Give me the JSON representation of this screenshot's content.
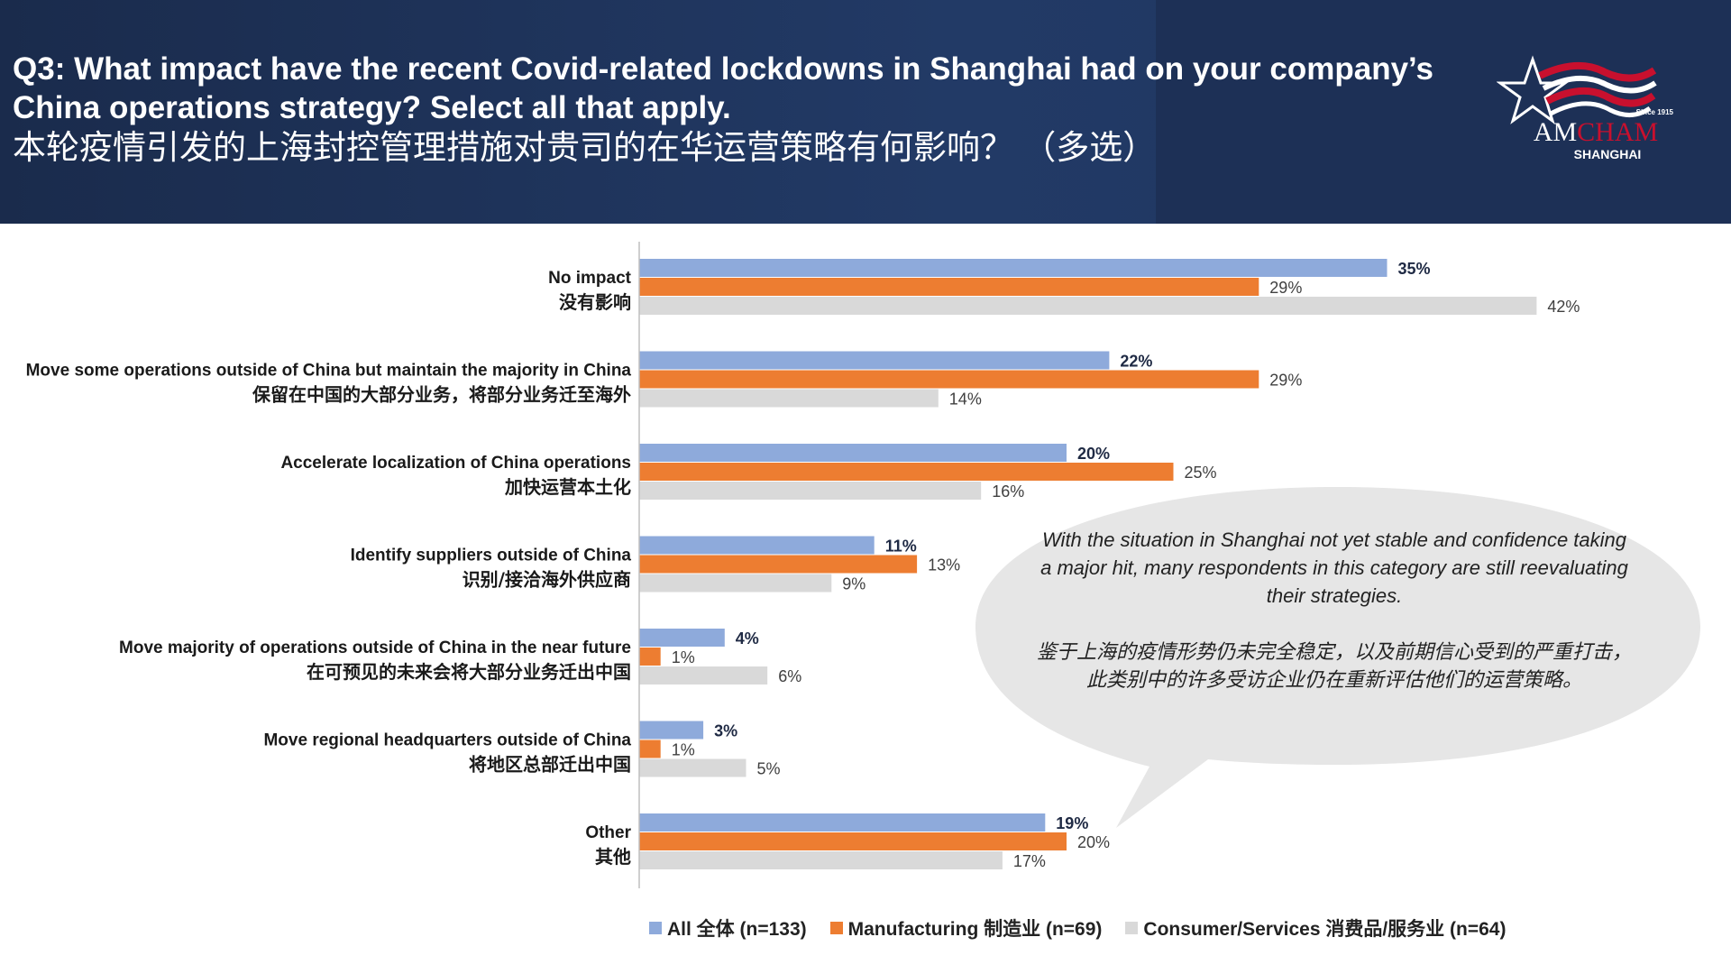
{
  "header": {
    "question_en": "Q3: What impact have the recent Covid-related lockdowns in Shanghai had on your company’s China operations strategy? Select all that apply.",
    "question_zh": "本轮疫情引发的上海封控管理措施对贵司的在华运营策略有何影响？ （多选）"
  },
  "logo": {
    "since": "Since 1915",
    "name_part1": "AM",
    "name_part2": "CHAM",
    "city": "SHANGHAI"
  },
  "callout": {
    "text_en": "With the situation in Shanghai not yet stable and confidence taking a major hit, many respondents in this category are still reevaluating their strategies.",
    "text_zh": "鉴于上海的疫情形势仍未完全稳定，以及前期信心受到的严重打击，此类别中的许多受访企业仍在重新评估他们的运营策略。"
  },
  "colors": {
    "header_bg": "#1a2b4c",
    "all": "#8eaadb",
    "manufacturing": "#ed7d31",
    "consumer": "#d9d9d9",
    "bubble": "#e6e6e6",
    "logo_red": "#c8102e"
  },
  "chart_data": {
    "type": "bar",
    "orientation": "horizontal",
    "categories": [
      {
        "en": "No impact",
        "zh": "没有影响"
      },
      {
        "en": "Move some operations outside of China but maintain the majority in China",
        "zh": "保留在中国的大部分业务，将部分业务迁至海外"
      },
      {
        "en": "Accelerate localization of China operations",
        "zh": "加快运营本土化"
      },
      {
        "en": "Identify suppliers outside of China",
        "zh": "识别/接洽海外供应商"
      },
      {
        "en": "Move majority of operations outside of China in the near future",
        "zh": "在可预见的未来会将大部分业务迁出中国"
      },
      {
        "en": "Move regional headquarters outside of China",
        "zh": "将地区总部迁出中国"
      },
      {
        "en": "Other",
        "zh": "其他"
      }
    ],
    "series": [
      {
        "name": "All 全体 (n=133)",
        "color": "#8eaadb",
        "bold_labels": true,
        "values": [
          35,
          22,
          20,
          11,
          4,
          3,
          19
        ]
      },
      {
        "name": "Manufacturing 制造业 (n=69)",
        "color": "#ed7d31",
        "bold_labels": false,
        "values": [
          29,
          29,
          25,
          13,
          1,
          1,
          20
        ]
      },
      {
        "name": "Consumer/Services 消费品/服务业 (n=64)",
        "color": "#d9d9d9",
        "bold_labels": false,
        "values": [
          42,
          14,
          16,
          9,
          6,
          5,
          17
        ]
      }
    ],
    "value_suffix": "%",
    "xlim": [
      0,
      45
    ],
    "legend_position": "bottom",
    "grid": false
  }
}
